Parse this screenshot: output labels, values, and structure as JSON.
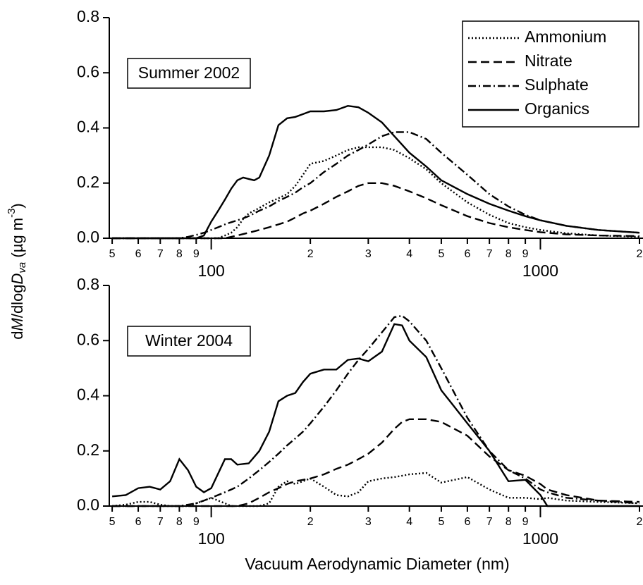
{
  "chart_data": [
    {
      "type": "line",
      "xscale": "log",
      "annotation": "Summer 2002",
      "legend": "upper right",
      "ylabel": [
        "d",
        "M",
        "/dlog",
        "D",
        "va",
        " (µg m",
        "-3",
        ")"
      ],
      "xlim": [
        49,
        2050
      ],
      "ylim": [
        0,
        0.8
      ],
      "yticks": [
        {
          "value": 0,
          "label": "0.0"
        },
        0.2,
        0.4,
        0.6,
        0.8
      ],
      "xticks": [
        {
          "value": 50,
          "label": "5"
        },
        {
          "value": 60,
          "label": "6"
        },
        {
          "value": 70,
          "label": "7"
        },
        {
          "value": 80,
          "label": "8"
        },
        {
          "value": 90,
          "label": "9"
        },
        100,
        {
          "value": 200,
          "label": "2"
        },
        {
          "value": 300,
          "label": "3"
        },
        {
          "value": 400,
          "label": "4"
        },
        {
          "value": 500,
          "label": "5"
        },
        {
          "value": 600,
          "label": "6"
        },
        {
          "value": 700,
          "label": "7"
        },
        {
          "value": 800,
          "label": "8"
        },
        {
          "value": 900,
          "label": "9"
        },
        1000,
        {
          "value": 2000,
          "label": "2"
        }
      ],
      "x": [
        50,
        60,
        70,
        80,
        85,
        90,
        95,
        100,
        105,
        110,
        115,
        120,
        125,
        130,
        135,
        140,
        150,
        160,
        170,
        180,
        190,
        200,
        220,
        240,
        260,
        280,
        300,
        330,
        360,
        400,
        450,
        500,
        600,
        700,
        800,
        900,
        1000,
        1200,
        1500,
        2000
      ],
      "series": [
        {
          "name": "Ammonium",
          "color": "#000000",
          "dash": "dotted",
          "values": [
            0,
            0,
            0,
            0,
            0,
            0,
            0,
            0,
            0,
            0.01,
            0.02,
            0.04,
            0.07,
            0.09,
            0.1,
            0.11,
            0.13,
            0.145,
            0.16,
            0.19,
            0.23,
            0.27,
            0.28,
            0.3,
            0.32,
            0.33,
            0.33,
            0.33,
            0.32,
            0.29,
            0.25,
            0.2,
            0.13,
            0.085,
            0.055,
            0.04,
            0.03,
            0.018,
            0.01,
            0.005
          ]
        },
        {
          "name": "Nitrate",
          "color": "#000000",
          "dash": "dashed",
          "values": [
            0,
            0,
            0,
            0,
            0,
            0,
            0,
            0,
            0,
            0,
            0.005,
            0.01,
            0.015,
            0.02,
            0.025,
            0.03,
            0.04,
            0.05,
            0.06,
            0.075,
            0.09,
            0.1,
            0.125,
            0.15,
            0.17,
            0.19,
            0.2,
            0.2,
            0.19,
            0.17,
            0.145,
            0.12,
            0.08,
            0.055,
            0.04,
            0.03,
            0.022,
            0.014,
            0.01,
            0.008
          ]
        },
        {
          "name": "Sulphate",
          "color": "#000000",
          "dash": "dashdot",
          "values": [
            0,
            0,
            0,
            0,
            0.005,
            0.012,
            0.02,
            0.03,
            0.04,
            0.05,
            0.058,
            0.065,
            0.072,
            0.08,
            0.09,
            0.1,
            0.115,
            0.135,
            0.15,
            0.165,
            0.185,
            0.2,
            0.24,
            0.27,
            0.3,
            0.32,
            0.34,
            0.37,
            0.385,
            0.385,
            0.36,
            0.31,
            0.23,
            0.16,
            0.115,
            0.085,
            0.065,
            0.045,
            0.03,
            0.02
          ]
        },
        {
          "name": "Organics",
          "color": "#000000",
          "dash": "solid",
          "values": [
            0,
            0,
            0,
            0,
            0,
            0,
            0.01,
            0.06,
            0.1,
            0.14,
            0.18,
            0.21,
            0.22,
            0.215,
            0.21,
            0.22,
            0.3,
            0.41,
            0.435,
            0.44,
            0.45,
            0.46,
            0.46,
            0.465,
            0.48,
            0.475,
            0.455,
            0.42,
            0.37,
            0.31,
            0.26,
            0.21,
            0.16,
            0.125,
            0.1,
            0.08,
            0.065,
            0.045,
            0.03,
            0.02
          ]
        }
      ]
    },
    {
      "type": "line",
      "xscale": "log",
      "annotation": "Winter 2004",
      "xlabel": "Vacuum Aerodynamic Diameter (nm)",
      "xlim": [
        49,
        2050
      ],
      "ylim": [
        0,
        0.8
      ],
      "yticks": [
        {
          "value": 0,
          "label": "0.0"
        },
        0.2,
        0.4,
        0.6,
        0.8
      ],
      "xticks": [
        {
          "value": 50,
          "label": "5"
        },
        {
          "value": 60,
          "label": "6"
        },
        {
          "value": 70,
          "label": "7"
        },
        {
          "value": 80,
          "label": "8"
        },
        {
          "value": 90,
          "label": "9"
        },
        100,
        {
          "value": 200,
          "label": "2"
        },
        {
          "value": 300,
          "label": "3"
        },
        {
          "value": 400,
          "label": "4"
        },
        {
          "value": 500,
          "label": "5"
        },
        {
          "value": 600,
          "label": "6"
        },
        {
          "value": 700,
          "label": "7"
        },
        {
          "value": 800,
          "label": "8"
        },
        {
          "value": 900,
          "label": "9"
        },
        1000,
        {
          "value": 2000,
          "label": "2"
        }
      ],
      "x": [
        50,
        55,
        60,
        65,
        70,
        75,
        80,
        85,
        90,
        95,
        100,
        110,
        115,
        120,
        130,
        140,
        150,
        160,
        170,
        180,
        190,
        200,
        220,
        240,
        260,
        280,
        300,
        330,
        360,
        380,
        400,
        450,
        500,
        600,
        700,
        800,
        900,
        1000,
        1050,
        1200,
        1500,
        2000
      ],
      "series": [
        {
          "name": "Ammonium",
          "color": "#000000",
          "dash": "dotted",
          "values": [
            0,
            0.005,
            0.015,
            0.015,
            0.005,
            0,
            0,
            0,
            0.01,
            0.02,
            0.03,
            0.01,
            0,
            0,
            0,
            0,
            0.01,
            0.07,
            0.09,
            0.08,
            0.09,
            0.1,
            0.07,
            0.04,
            0.035,
            0.05,
            0.09,
            0.1,
            0.105,
            0.11,
            0.115,
            0.12,
            0.085,
            0.105,
            0.06,
            0.03,
            0.03,
            0.025,
            0.03,
            0.02,
            0.015,
            0.01
          ]
        },
        {
          "name": "Nitrate",
          "color": "#000000",
          "dash": "dashed",
          "values": [
            0,
            0,
            0,
            0,
            0,
            0,
            0,
            0,
            0,
            0,
            0,
            0,
            0,
            0,
            0.01,
            0.03,
            0.05,
            0.065,
            0.08,
            0.09,
            0.095,
            0.1,
            0.115,
            0.135,
            0.15,
            0.17,
            0.19,
            0.23,
            0.28,
            0.305,
            0.315,
            0.315,
            0.305,
            0.255,
            0.18,
            0.13,
            0.11,
            0.08,
            0.06,
            0.04,
            0.02,
            0.015
          ]
        },
        {
          "name": "Sulphate",
          "color": "#000000",
          "dash": "dashdot",
          "values": [
            0,
            0,
            0,
            0,
            0,
            0,
            0,
            0.005,
            0.01,
            0.02,
            0.03,
            0.05,
            0.06,
            0.07,
            0.1,
            0.13,
            0.16,
            0.19,
            0.22,
            0.245,
            0.27,
            0.3,
            0.36,
            0.42,
            0.48,
            0.53,
            0.57,
            0.63,
            0.685,
            0.69,
            0.67,
            0.6,
            0.5,
            0.32,
            0.2,
            0.13,
            0.1,
            0.06,
            0.05,
            0.03,
            0.02,
            0.01
          ]
        },
        {
          "name": "Organics",
          "color": "#000000",
          "dash": "solid",
          "values": [
            0.035,
            0.04,
            0.065,
            0.07,
            0.06,
            0.09,
            0.17,
            0.13,
            0.07,
            0.05,
            0.065,
            0.17,
            0.17,
            0.15,
            0.155,
            0.2,
            0.27,
            0.38,
            0.4,
            0.41,
            0.45,
            0.48,
            0.495,
            0.495,
            0.53,
            0.535,
            0.525,
            0.56,
            0.66,
            0.655,
            0.6,
            0.54,
            0.42,
            0.3,
            0.2,
            0.09,
            0.095,
            0.04,
            0,
            0,
            0,
            0
          ]
        }
      ]
    }
  ]
}
